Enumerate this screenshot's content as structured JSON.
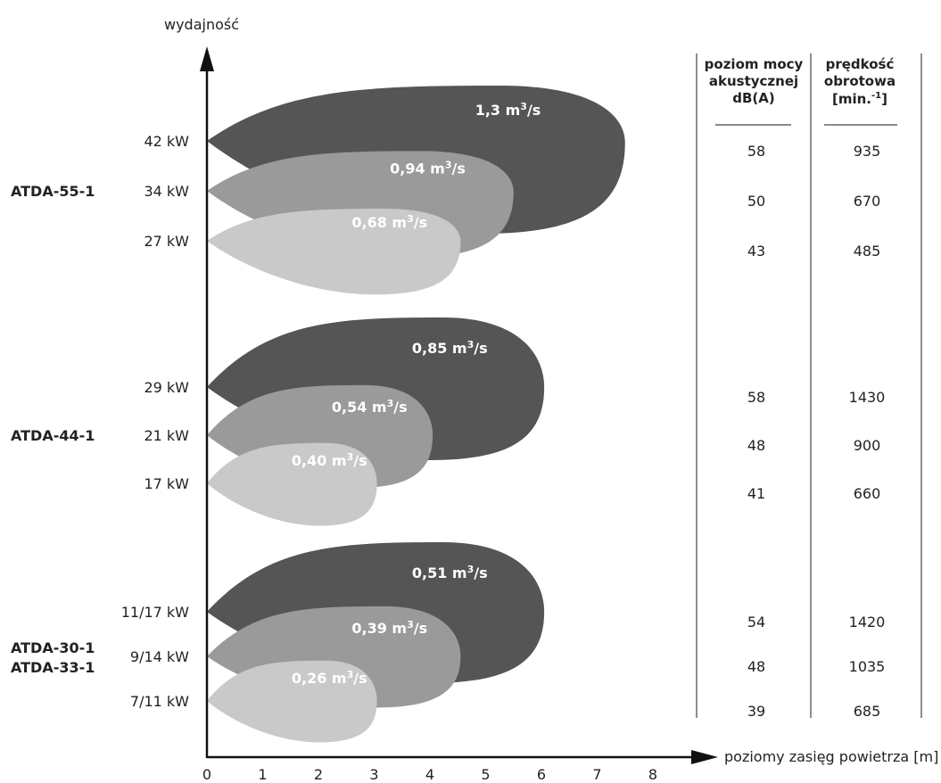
{
  "colors": {
    "dark": "#555555",
    "mid": "#9a9a9a",
    "light": "#c9c9c9",
    "axis": "#111111"
  },
  "chart_data": {
    "type": "area",
    "ylabel": "wydajność",
    "xlabel": "poziomy zasięg powietrza [m]",
    "x_ticks": [
      "0",
      "1",
      "2",
      "3",
      "4",
      "5",
      "6",
      "7",
      "8"
    ],
    "xlim": [
      0,
      8
    ],
    "grid": false,
    "table_headers": {
      "sound": [
        "poziom mocy",
        "akustycznej",
        "dB(A)"
      ],
      "speed_line1": "prędkość",
      "speed_line2": "obrotowa",
      "speed_line3_base": "[min.",
      "speed_line3_sup": "-1",
      "speed_line3_end": "]"
    },
    "groups": [
      {
        "model": [
          "ATDA-55-1"
        ],
        "rows": [
          {
            "power": "42 kW",
            "flow_value": "1,3",
            "throw_m": 7.5,
            "sound_dba": "58",
            "speed_rpm": "935",
            "shade": "dark"
          },
          {
            "power": "34 kW",
            "flow_value": "0,94",
            "throw_m": 5.5,
            "sound_dba": "50",
            "speed_rpm": "670",
            "shade": "mid"
          },
          {
            "power": "27 kW",
            "flow_value": "0,68",
            "throw_m": 4.55,
            "sound_dba": "43",
            "speed_rpm": "485",
            "shade": "light"
          }
        ]
      },
      {
        "model": [
          "ATDA-44-1"
        ],
        "rows": [
          {
            "power": "29 kW",
            "flow_value": "0,85",
            "throw_m": 6.05,
            "sound_dba": "58",
            "speed_rpm": "1430",
            "shade": "dark"
          },
          {
            "power": "21 kW",
            "flow_value": "0,54",
            "throw_m": 4.05,
            "sound_dba": "48",
            "speed_rpm": "900",
            "shade": "mid"
          },
          {
            "power": "17 kW",
            "flow_value": "0,40",
            "throw_m": 3.05,
            "sound_dba": "41",
            "speed_rpm": "660",
            "shade": "light"
          }
        ]
      },
      {
        "model": [
          "ATDA-30-1",
          "ATDA-33-1"
        ],
        "rows": [
          {
            "power": "11/17 kW",
            "flow_value": "0,51",
            "throw_m": 6.05,
            "sound_dba": "54",
            "speed_rpm": "1420",
            "shade": "dark"
          },
          {
            "power": "9/14 kW",
            "flow_value": "0,39",
            "throw_m": 4.55,
            "sound_dba": "48",
            "speed_rpm": "1035",
            "shade": "mid"
          },
          {
            "power": "7/11 kW",
            "flow_value": "0,26",
            "throw_m": 3.05,
            "sound_dba": "39",
            "speed_rpm": "685",
            "shade": "light"
          }
        ]
      }
    ],
    "flow_unit": {
      "base": "m",
      "sup": "3",
      "end": "/s"
    }
  }
}
